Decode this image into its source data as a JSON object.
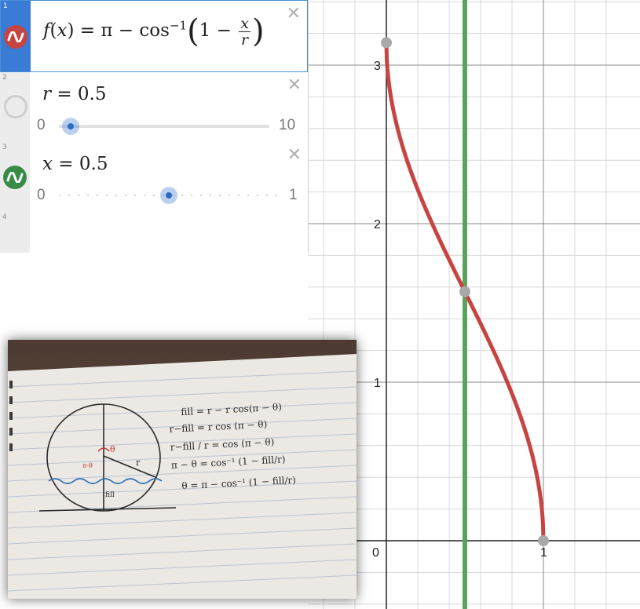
{
  "graph": {
    "x_ticks": [
      "0",
      "1"
    ],
    "y_ticks": [
      "1",
      "2",
      "3"
    ],
    "curve_color": "#c74440",
    "line_color": "#59a35f",
    "r": 0.5,
    "x_line": 0.5
  },
  "expressions": [
    {
      "index": "1",
      "icon": "wave-icon",
      "color": "#c74440",
      "lhs": "f",
      "var": "x",
      "rhs_pi": "π",
      "cos": "cos",
      "sup": "−1",
      "one": "1",
      "num": "x",
      "den": "r"
    },
    {
      "index": "2",
      "icon": "hidden-circle-icon",
      "color": "#cccccc",
      "label_var": "r",
      "label_val": "= 0.5",
      "min": "0",
      "max": "10",
      "value": 0.5
    },
    {
      "index": "3",
      "icon": "wave-icon",
      "color": "#388c46",
      "label_var": "x",
      "label_val": "= 0.5",
      "min": "0",
      "max": "1",
      "value": 0.5
    },
    {
      "index": "4"
    }
  ],
  "photo": {
    "annotations": [
      "θ",
      "π-θ",
      "r",
      "fill"
    ],
    "equations": [
      "fill = r − r cos(π − θ)",
      "r−fill = r cos (π − θ)",
      "r−fill / r = cos (π − θ)",
      "π − θ = cos⁻¹ (1 − fill/r)",
      "θ = π − cos⁻¹ (1 − fill/r)"
    ]
  }
}
